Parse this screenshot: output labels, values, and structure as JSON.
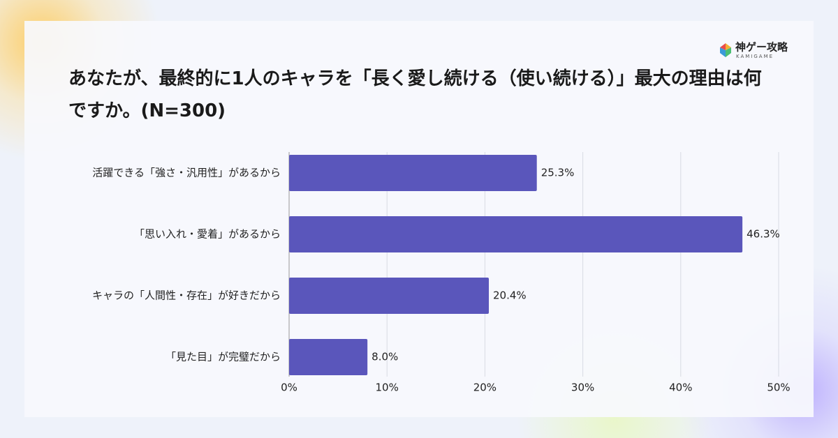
{
  "logo": {
    "name": "神ゲー攻略",
    "sub": "KAMIGAME"
  },
  "chart_data": {
    "type": "barh",
    "title": "あなたが、最終的に1人のキャラを「長く愛し続ける（使い続ける）」最大の理由は何ですか。(N=300)",
    "categories": [
      "活躍できる「強さ・汎用性」があるから",
      "「思い入れ・愛着」があるから",
      "キャラの「人間性・存在」が好きだから",
      "「見た目」が完璧だから"
    ],
    "values": [
      25.3,
      46.3,
      20.4,
      8.0
    ],
    "value_labels": [
      "25.3%",
      "46.3%",
      "20.4%",
      "8.0%"
    ],
    "color": "#5a56bb",
    "xlim": [
      0,
      50
    ],
    "xticks": [
      {
        "value": 0,
        "label": "0%"
      },
      {
        "value": 10,
        "label": "10%"
      },
      {
        "value": 20,
        "label": "20%"
      },
      {
        "value": 30,
        "label": "30%"
      },
      {
        "value": 40,
        "label": "40%"
      },
      {
        "value": 50,
        "label": "50%"
      }
    ],
    "grid": true
  }
}
